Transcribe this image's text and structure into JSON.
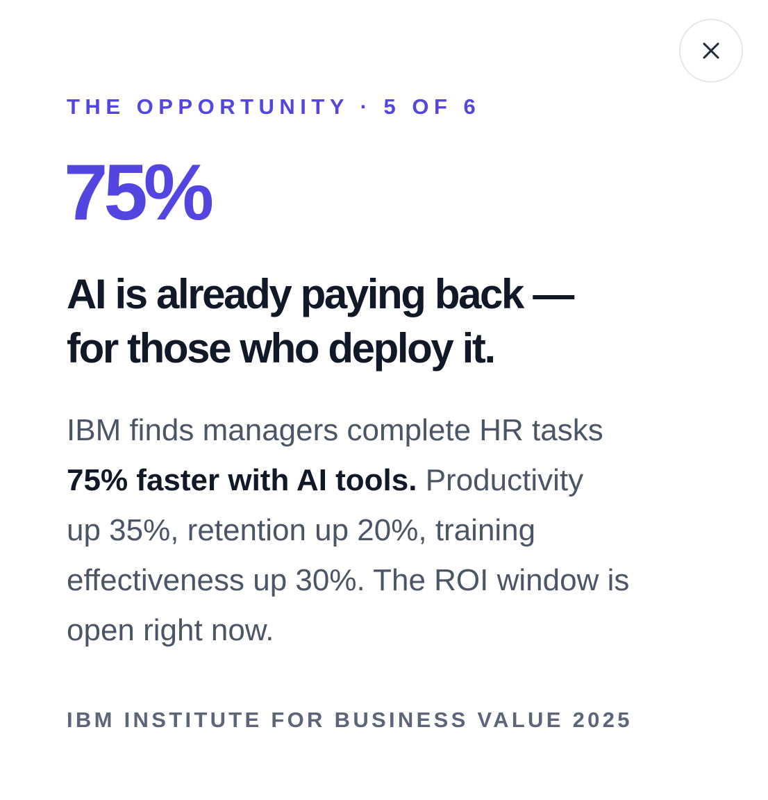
{
  "dialog": {
    "close_icon": "close-icon",
    "eyebrow": "THE OPPORTUNITY · 5 OF 6",
    "stat": "75%",
    "headline": {
      "line1": "AI is already paying back —",
      "line2": "for those who deploy it."
    },
    "body": {
      "line1": "IBM finds managers complete HR tasks",
      "line2_bold": "75% faster with AI tools.",
      "line2_rest": " Productivity",
      "line3": "up 35%, retention up 20%, training",
      "line4": "effectiveness up 30%. The ROI window is",
      "line5": "open right now."
    },
    "source": "IBM INSTITUTE FOR BUSINESS VALUE 2025"
  },
  "colors": {
    "accent": "#5346e0",
    "heading": "#111827",
    "body": "#4b5565",
    "source": "#5c6678",
    "border": "#e5e7eb"
  }
}
